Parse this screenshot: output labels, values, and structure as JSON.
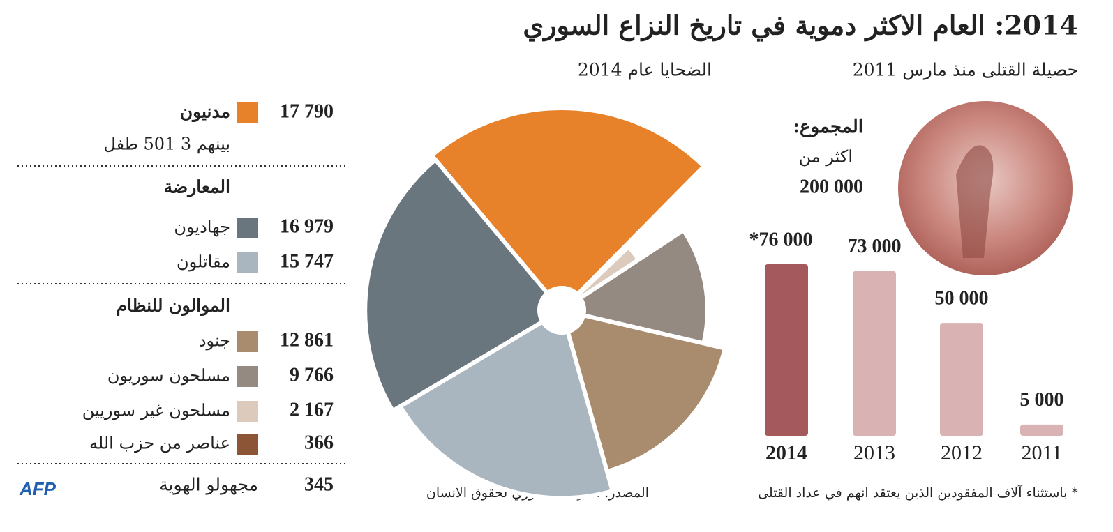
{
  "title": "2014: العام الاكثر دموية في تاريخ النزاع السوري",
  "chart_data": [
    {
      "type": "rose",
      "title": "الضحايا عام 2014",
      "categories": [
        "مدنيون",
        "جهاديون",
        "مقاتلون",
        "جنود",
        "مسلحون سوريون",
        "مسلحون غير سوريين",
        "عناصر من حزب الله"
      ],
      "values": [
        17790,
        16979,
        15747,
        12861,
        9766,
        2167,
        366
      ],
      "value_labels": [
        "17 790",
        "16 979",
        "15 747",
        "12 861",
        "9 766",
        "2 167",
        "366"
      ],
      "colors": [
        "#e8822a",
        "#6a767d",
        "#a9b6bf",
        "#a98b6d",
        "#958a81",
        "#dccbbd",
        "#8c5535"
      ]
    },
    {
      "type": "bar",
      "title": "حصيلة القتلى منذ مارس 2011",
      "categories": [
        "2014",
        "2013",
        "2012",
        "2011"
      ],
      "values": [
        76000,
        73000,
        50000,
        5000
      ],
      "value_labels": [
        "*76 000",
        "73 000",
        "50 000",
        "5 000"
      ],
      "colors": [
        "#a45a5c",
        "#d9b2b3",
        "#d9b2b3",
        "#d9b2b3"
      ]
    }
  ],
  "legend": {
    "note": "بينهم 3 501 طفل",
    "opposition": "المعارضة",
    "loyalists": "الموالون للنظام"
  },
  "unidentified": {
    "label": "مجهولو الهوية",
    "value": 345
  },
  "total": {
    "label": "المجموع:",
    "prefix": "اكثر من",
    "value": 200000,
    "value_label": "200 000"
  },
  "footnote": "* باستثناء آلاف المفقودين الذين يعتقد انهم في عداد القتلى",
  "source": "المصدر: المرصد السوري لحقوق الانسان",
  "logo": "AFP"
}
